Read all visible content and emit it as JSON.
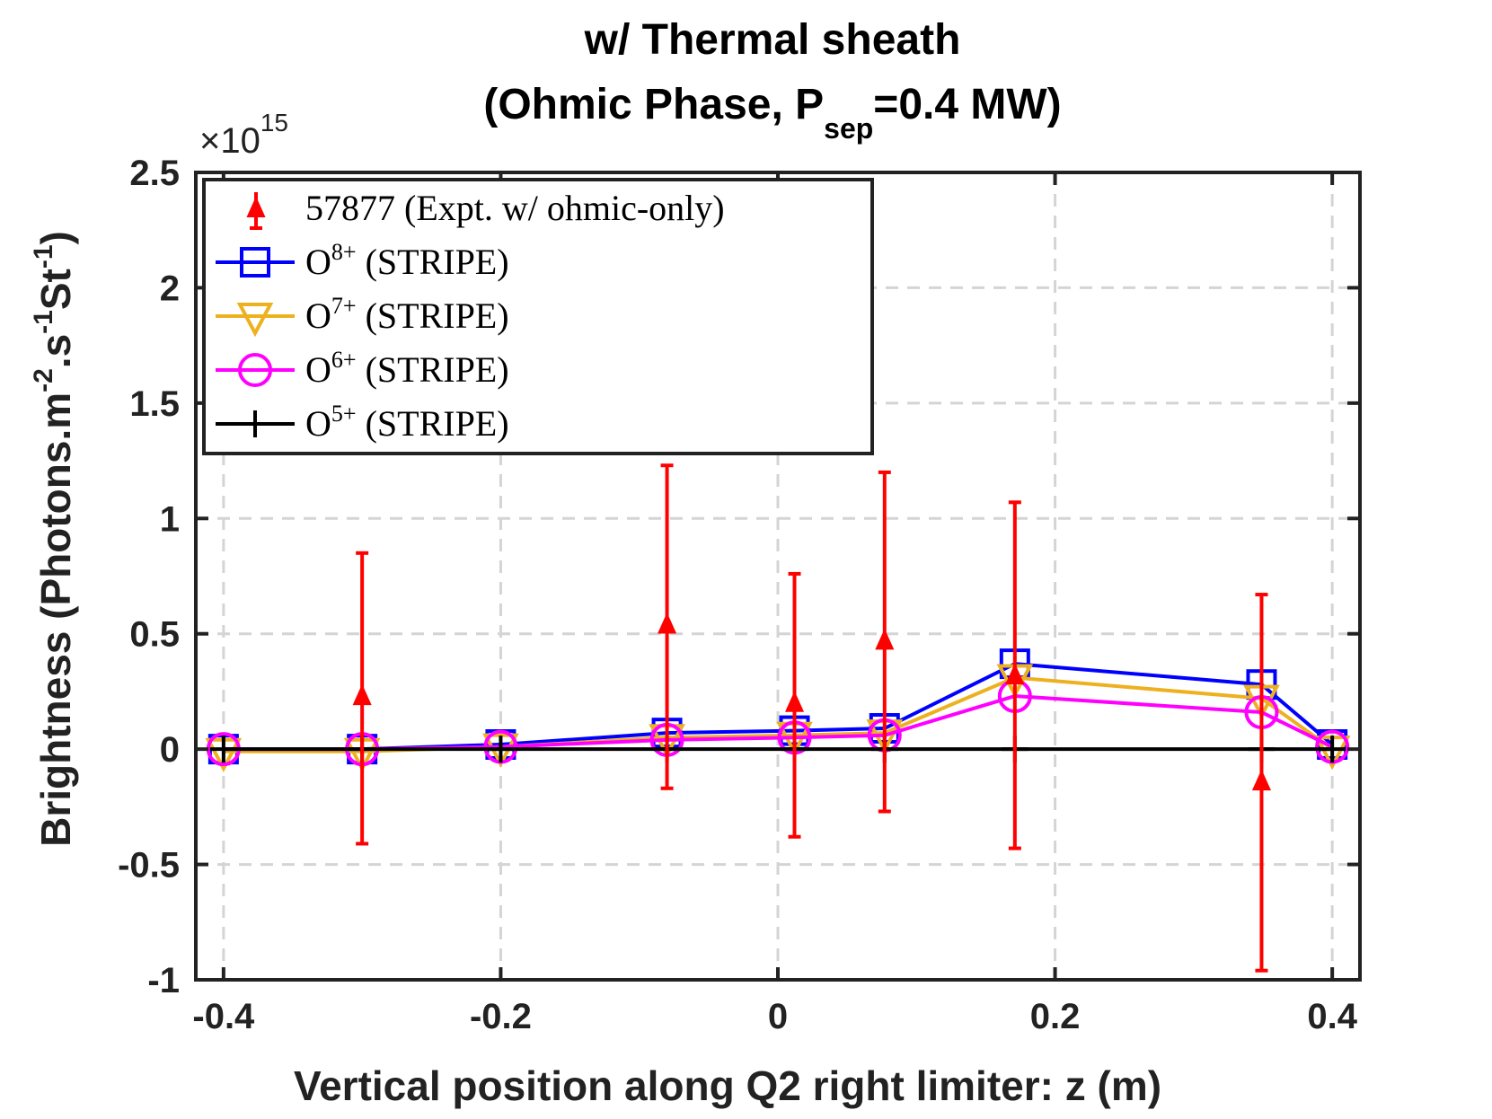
{
  "chart_data": {
    "type": "line",
    "title_main": "w/ Thermal sheath",
    "title_line2_prefix": "(Ohmic Phase, P",
    "title_line2_sub": "sep",
    "title_line2_suffix": "=0.4 MW)",
    "xlabel": "Vertical position along Q2 right limiter: z (m)",
    "ylabel_parts": {
      "prefix": "Brightness (Photons.m",
      "sup1": "-2",
      "mid": ".s",
      "sup2": "-1",
      "mid2": "St",
      "sup3": "-1",
      "suffix": ")"
    },
    "y_exponent_base": "×10",
    "y_exponent_power": "15",
    "xlim": [
      -0.42,
      0.42
    ],
    "ylim": [
      -1,
      2.5
    ],
    "xticks": [
      -0.4,
      -0.2,
      0,
      0.2,
      0.4
    ],
    "xtick_labels": [
      "-0.4",
      "-0.2",
      "0",
      "0.2",
      "0.4"
    ],
    "yticks": [
      -1,
      -0.5,
      0,
      0.5,
      1,
      1.5,
      2,
      2.5
    ],
    "ytick_labels": [
      "-1",
      "-0.5",
      "0",
      "0.5",
      "1",
      "1.5",
      "2",
      "2.5"
    ],
    "grid": true,
    "legend_position": "top-left",
    "x": [
      -0.4,
      -0.3,
      -0.2,
      -0.08,
      0.012,
      0.077,
      0.171,
      0.349,
      0.4
    ],
    "series": [
      {
        "name": "57877 (Expt. w/ ohmic-only)",
        "name_base": "57877 (Expt. w/ ohmic-only)",
        "name_sup": "",
        "name_tail": "",
        "style": "errorbar",
        "marker": "triangle-up",
        "color": "#ff0000",
        "x": [
          -0.3,
          -0.08,
          0.012,
          0.077,
          0.171,
          0.349
        ],
        "values": [
          0.23,
          0.54,
          0.2,
          0.47,
          0.32,
          -0.14
        ],
        "err_low": [
          -0.41,
          -0.17,
          -0.38,
          -0.27,
          -0.43,
          -0.96
        ],
        "err_high": [
          0.85,
          1.23,
          0.76,
          1.2,
          1.07,
          0.67
        ]
      },
      {
        "name": "O8+ (STRIPE)",
        "name_base": "O",
        "name_sup": "8+",
        "name_tail": " (STRIPE)",
        "style": "line",
        "marker": "square",
        "color": "#0000ff",
        "values": [
          0.0,
          0.0,
          0.02,
          0.07,
          0.08,
          0.09,
          0.37,
          0.28,
          0.02
        ]
      },
      {
        "name": "O7+ (STRIPE)",
        "name_base": "O",
        "name_sup": "7+",
        "name_tail": " (STRIPE)",
        "style": "line",
        "marker": "triangle-down",
        "color": "#edb120",
        "values": [
          -0.01,
          -0.01,
          0.01,
          0.05,
          0.06,
          0.07,
          0.31,
          0.22,
          0.0
        ]
      },
      {
        "name": "O6+ (STRIPE)",
        "name_base": "O",
        "name_sup": "6+",
        "name_tail": " (STRIPE)",
        "style": "line",
        "marker": "circle",
        "color": "#ff00ff",
        "values": [
          0.0,
          0.0,
          0.01,
          0.04,
          0.05,
          0.06,
          0.23,
          0.16,
          0.01
        ]
      },
      {
        "name": "O5+ (STRIPE)",
        "name_base": "O",
        "name_sup": "5+",
        "name_tail": " (STRIPE)",
        "style": "line",
        "marker": "plus",
        "color": "#000000",
        "values": [
          0.0,
          0.0,
          0.0,
          0.0,
          0.0,
          0.0,
          0.0,
          0.0,
          0.0
        ]
      }
    ]
  }
}
